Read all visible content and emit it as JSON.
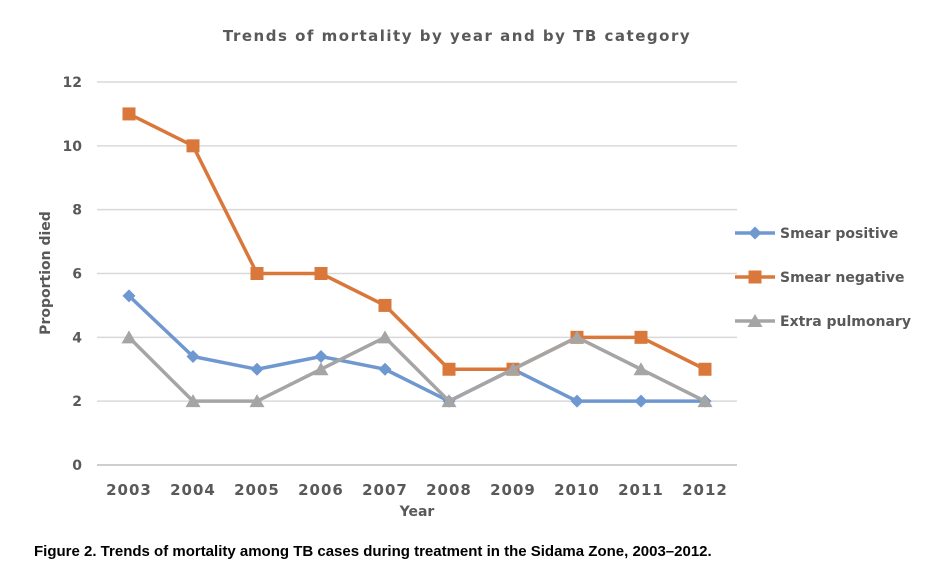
{
  "chart_data": {
    "type": "line",
    "title": "Trends of mortality by year and by TB category",
    "xlabel": "Year",
    "ylabel": "Proportion died",
    "categories": [
      "2003",
      "2004",
      "2005",
      "2006",
      "2007",
      "2008",
      "2009",
      "2010",
      "2011",
      "2012"
    ],
    "ylim": [
      0,
      12
    ],
    "yticks": [
      0,
      2,
      4,
      6,
      8,
      10,
      12
    ],
    "grid": true,
    "legend_position": "right",
    "series": [
      {
        "name": "Smear positive",
        "values": [
          5.3,
          3.4,
          3,
          3.4,
          3,
          2,
          3,
          2,
          2,
          2
        ],
        "color": "#6f97d0",
        "marker": "diamond"
      },
      {
        "name": "Smear negative",
        "values": [
          11,
          10,
          6,
          6,
          5,
          3,
          3,
          4,
          4,
          3
        ],
        "color": "#d9783a",
        "marker": "square"
      },
      {
        "name": "Extra pulmonary",
        "values": [
          4,
          2,
          2,
          3,
          4,
          2,
          3,
          4,
          3,
          2
        ],
        "color": "#a5a5a5",
        "marker": "triangle"
      }
    ]
  },
  "caption": "Figure 2. Trends of mortality among TB cases during treatment in the Sidama Zone, 2003–2012."
}
